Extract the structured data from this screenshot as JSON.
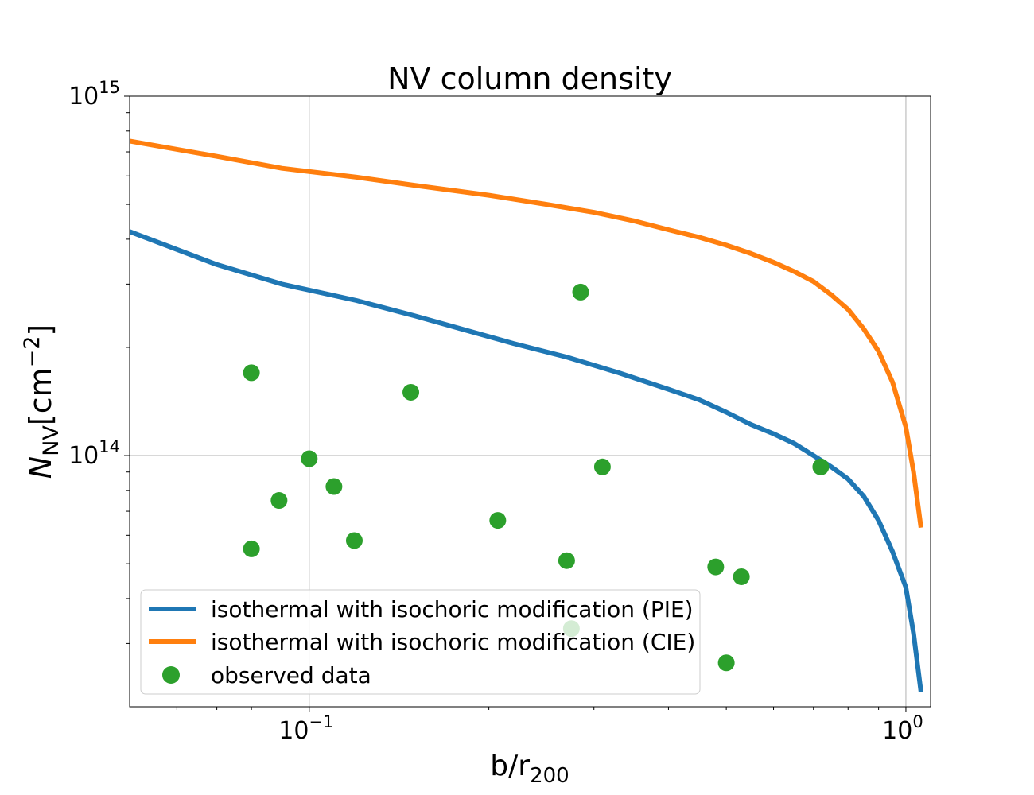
{
  "chart_data": {
    "type": "line",
    "title": "NV column density",
    "xlabel": "b/r",
    "xlabel_sub": "200",
    "ylabel": "N",
    "ylabel_sub": "NV",
    "ylabel_unit": "[cm",
    "ylabel_unit_exp": "−2",
    "ylabel_unit_close": "]",
    "xscale": "log",
    "yscale": "log",
    "xlim": [
      0.05,
      1.1
    ],
    "ylim": [
      20000000000000.0,
      1000000000000000.0
    ],
    "grid": true,
    "x_ticks": [
      {
        "value": 0.1,
        "base": "10",
        "exp": "−1"
      },
      {
        "value": 1.0,
        "base": "10",
        "exp": "0"
      }
    ],
    "y_ticks": [
      {
        "value": 100000000000000.0,
        "base": "10",
        "exp": "14"
      },
      {
        "value": 1000000000000000.0,
        "base": "10",
        "exp": "15"
      }
    ],
    "legend_position": "lower-left",
    "series": [
      {
        "name": "isothermal with isochoric modification (PIE)",
        "kind": "line",
        "color": "#1f77b4",
        "x": [
          0.05,
          0.07,
          0.09,
          0.12,
          0.15,
          0.18,
          0.22,
          0.27,
          0.33,
          0.4,
          0.45,
          0.5,
          0.55,
          0.6,
          0.65,
          0.7,
          0.75,
          0.8,
          0.85,
          0.9,
          0.95,
          1.0,
          1.03,
          1.06
        ],
        "y": [
          420000000000000.0,
          340000000000000.0,
          300000000000000.0,
          270000000000000.0,
          245000000000000.0,
          225000000000000.0,
          205000000000000.0,
          188000000000000.0,
          170000000000000.0,
          153000000000000.0,
          143000000000000.0,
          132000000000000.0,
          122000000000000.0,
          115000000000000.0,
          108000000000000.0,
          100000000000000.0,
          93000000000000.0,
          86000000000000.0,
          77000000000000.0,
          66000000000000.0,
          54000000000000.0,
          43000000000000.0,
          32000000000000.0,
          22000000000000.0
        ]
      },
      {
        "name": "isothermal with isochoric modification (CIE)",
        "kind": "line",
        "color": "#ff7f0e",
        "x": [
          0.05,
          0.07,
          0.09,
          0.12,
          0.15,
          0.2,
          0.25,
          0.3,
          0.35,
          0.4,
          0.45,
          0.5,
          0.55,
          0.6,
          0.65,
          0.7,
          0.75,
          0.8,
          0.85,
          0.9,
          0.95,
          1.0,
          1.03,
          1.06
        ],
        "y": [
          750000000000000.0,
          680000000000000.0,
          630000000000000.0,
          595000000000000.0,
          565000000000000.0,
          530000000000000.0,
          500000000000000.0,
          475000000000000.0,
          450000000000000.0,
          425000000000000.0,
          405000000000000.0,
          385000000000000.0,
          365000000000000.0,
          345000000000000.0,
          325000000000000.0,
          305000000000000.0,
          280000000000000.0,
          255000000000000.0,
          225000000000000.0,
          195000000000000.0,
          160000000000000.0,
          120000000000000.0,
          90000000000000.0,
          63000000000000.0
        ]
      },
      {
        "name": "observed data",
        "kind": "scatter",
        "color": "#2ca02c",
        "x": [
          0.08,
          0.08,
          0.089,
          0.1,
          0.11,
          0.119,
          0.148,
          0.207,
          0.27,
          0.285,
          0.31,
          0.275,
          0.48,
          0.53,
          0.5,
          0.72
        ],
        "y": [
          170000000000000.0,
          55000000000000.0,
          75000000000000.0,
          98000000000000.0,
          82000000000000.0,
          58000000000000.0,
          150000000000000.0,
          66000000000000.0,
          51000000000000.0,
          285000000000000.0,
          93000000000000.0,
          33000000000000.0,
          49000000000000.0,
          46000000000000.0,
          26500000000000.0,
          93000000000000.0
        ]
      }
    ]
  }
}
